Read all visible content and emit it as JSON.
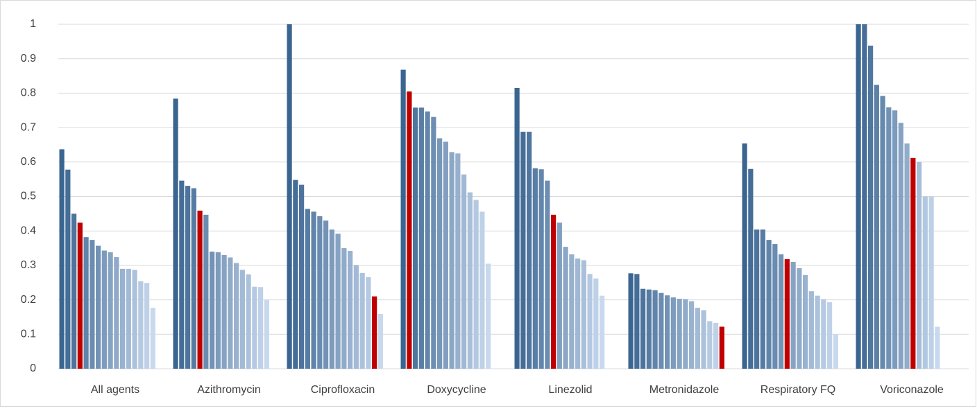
{
  "chart_data": {
    "type": "grouped-bar",
    "categories": [
      "All agents",
      "Azithromycin",
      "Ciprofloxacin",
      "Doxycycline",
      "Linezolid",
      "Metronidazole",
      "Respiratory FQ",
      "Voriconazole"
    ],
    "values": [
      [
        0.637,
        0.578,
        0.45,
        0.424,
        0.382,
        0.374,
        0.357,
        0.343,
        0.338,
        0.324,
        0.29,
        0.29,
        0.287,
        0.254,
        0.249,
        0.177
      ],
      [
        0.784,
        0.546,
        0.531,
        0.524,
        0.459,
        0.447,
        0.34,
        0.338,
        0.33,
        0.323,
        0.307,
        0.287,
        0.274,
        0.238,
        0.237,
        0.2
      ],
      [
        1,
        0.548,
        0.534,
        0.464,
        0.456,
        0.443,
        0.43,
        0.404,
        0.392,
        0.35,
        0.342,
        0.301,
        0.278,
        0.266,
        0.21,
        0.159
      ],
      [
        0.868,
        0.805,
        0.758,
        0.758,
        0.747,
        0.731,
        0.669,
        0.659,
        0.629,
        0.625,
        0.564,
        0.512,
        0.49,
        0.456,
        0.305
      ],
      [
        0.815,
        0.688,
        0.688,
        0.582,
        0.579,
        0.546,
        0.447,
        0.424,
        0.354,
        0.332,
        0.32,
        0.315,
        0.275,
        0.262,
        0.212
      ],
      [
        0.277,
        0.275,
        0.232,
        0.23,
        0.228,
        0.22,
        0.213,
        0.207,
        0.203,
        0.202,
        0.196,
        0.177,
        0.17,
        0.138,
        0.133,
        0.122
      ],
      [
        0.654,
        0.58,
        0.404,
        0.404,
        0.374,
        0.362,
        0.332,
        0.318,
        0.31,
        0.292,
        0.272,
        0.225,
        0.212,
        0.202,
        0.193,
        0.1
      ],
      [
        1,
        1,
        0.938,
        0.824,
        0.792,
        0.759,
        0.75,
        0.714,
        0.654,
        0.612,
        0.6,
        0.5,
        0.5,
        0.122
      ]
    ],
    "highlight": [
      3,
      4,
      14,
      1,
      6,
      15,
      7,
      9
    ],
    "color_start": "#3b6591",
    "color_end": "#c8d9ee",
    "highlight_color": "#c00000",
    "ylim": [
      0,
      1
    ],
    "yticks": [
      0,
      0.1,
      0.2,
      0.3,
      0.4,
      0.5,
      0.6,
      0.7,
      0.8,
      0.9,
      1
    ],
    "grid": true
  }
}
